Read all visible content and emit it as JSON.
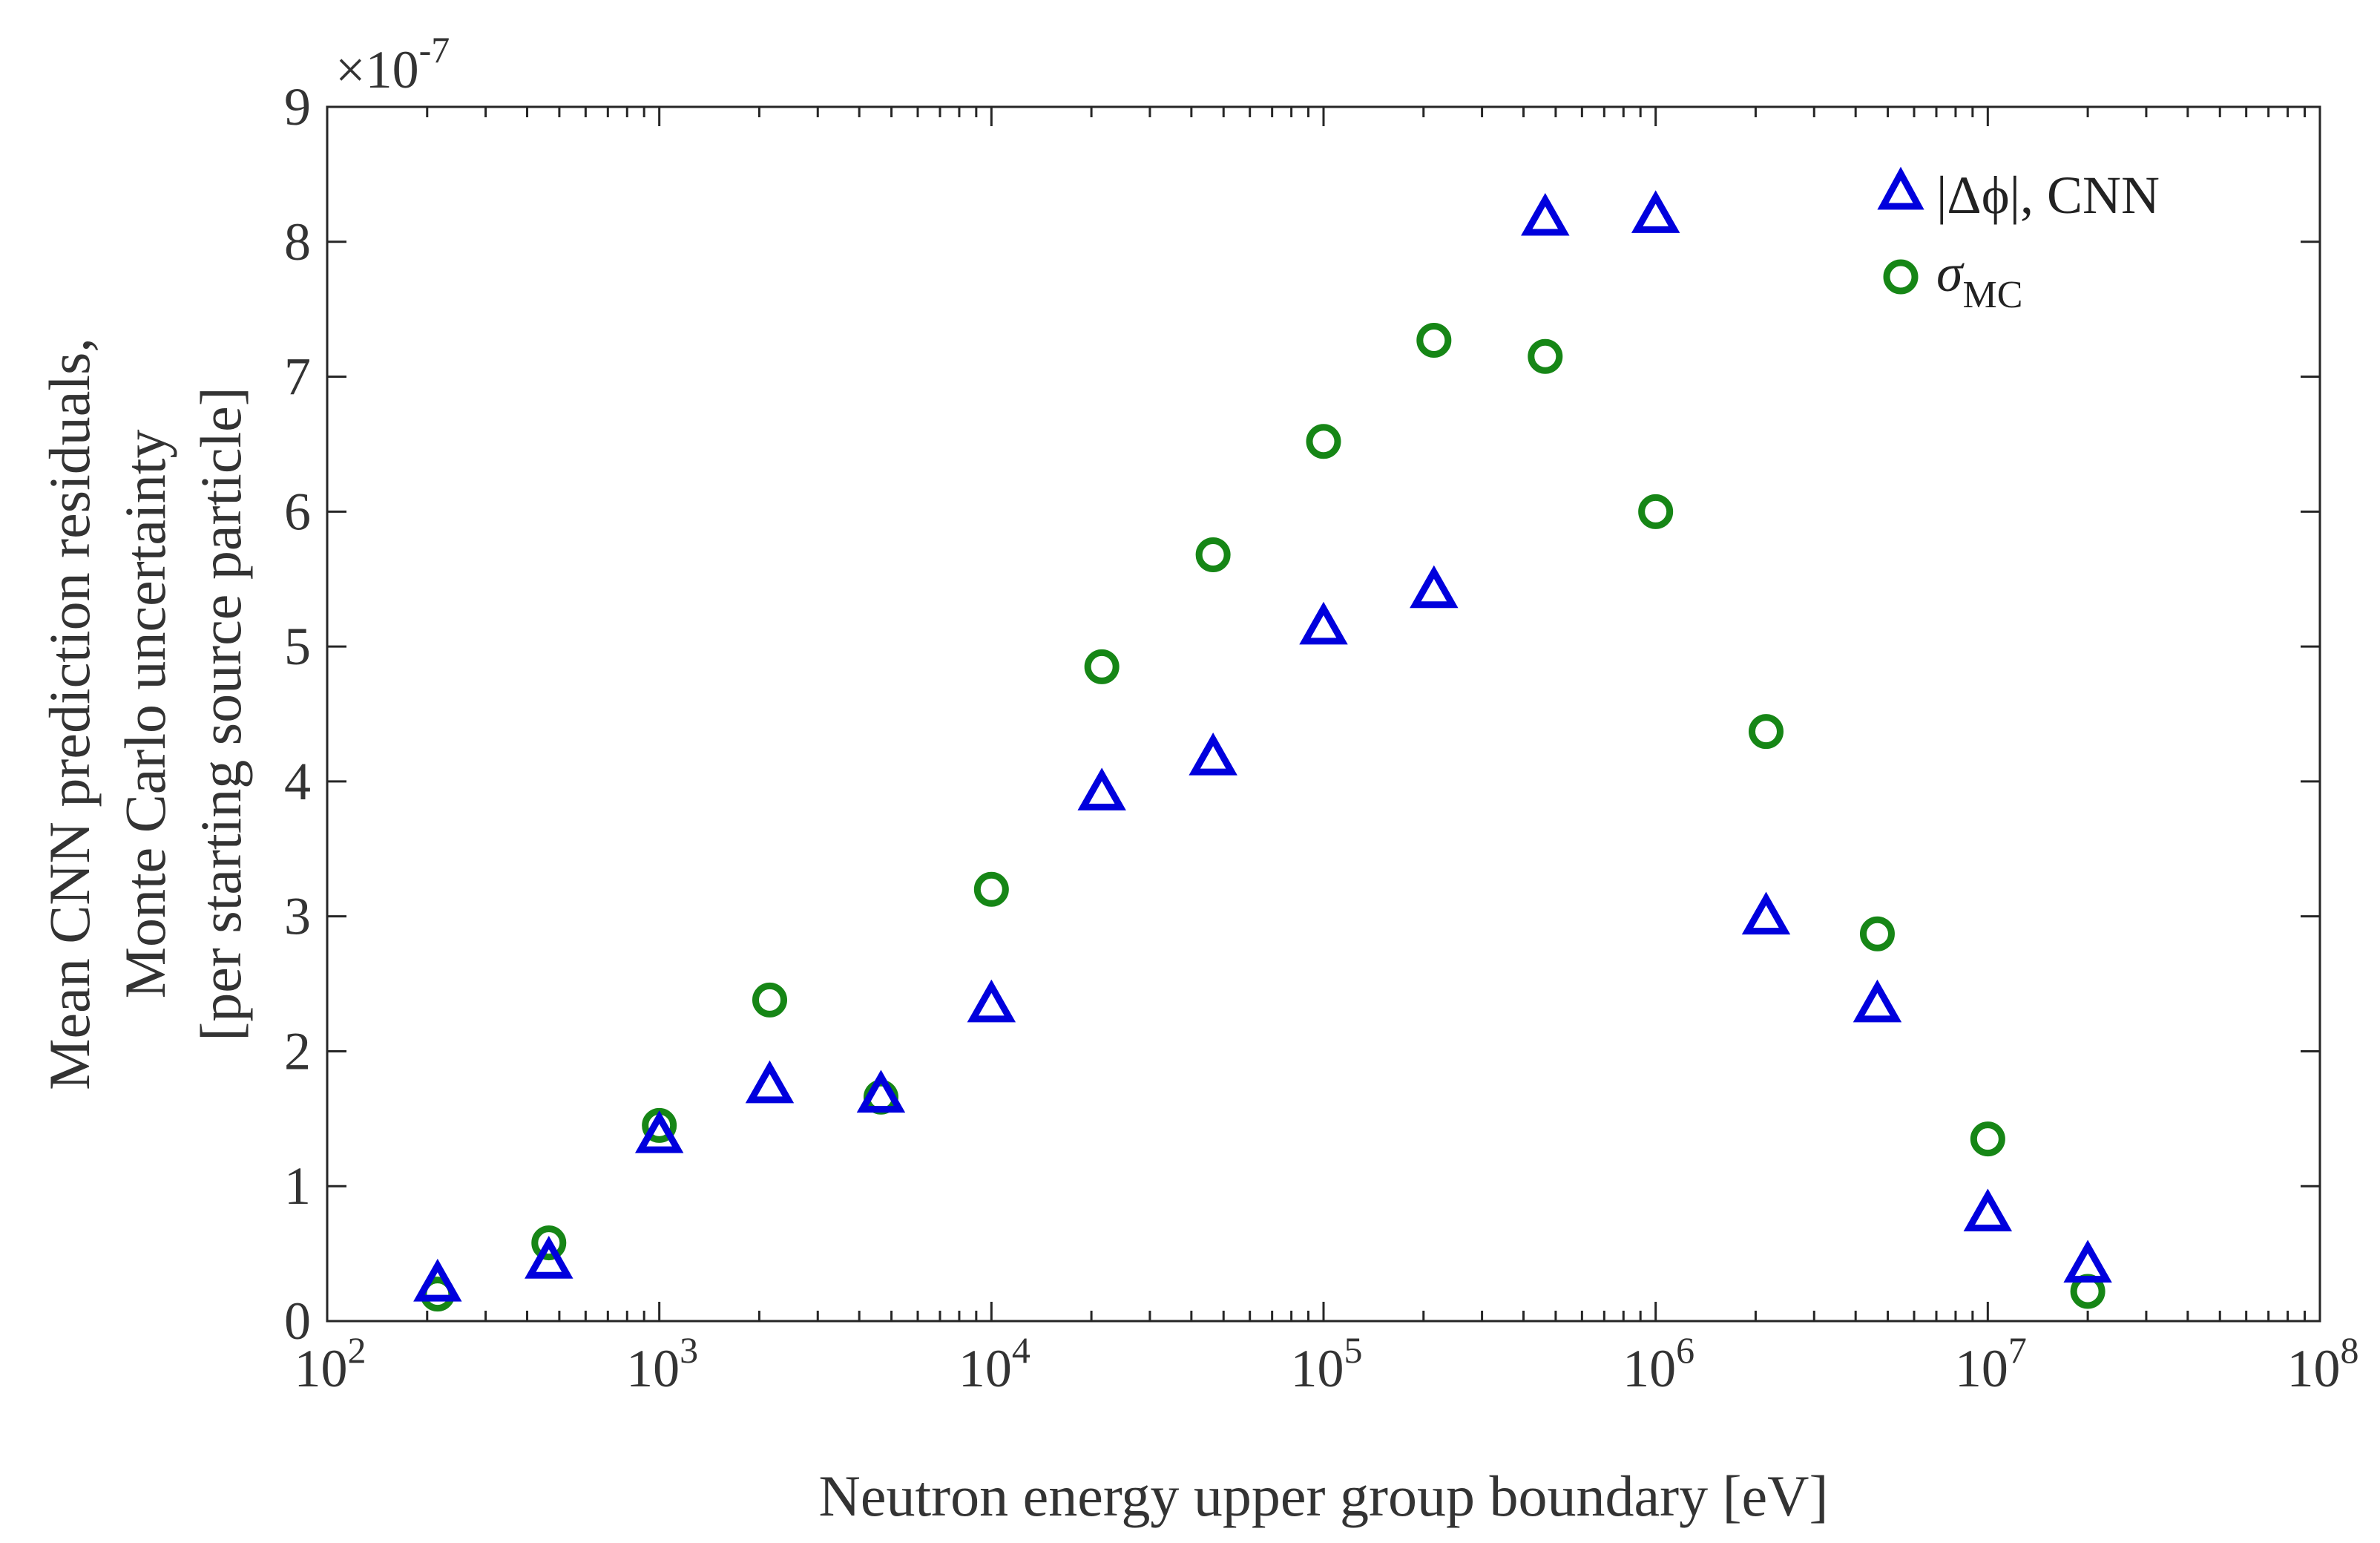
{
  "chart_data": {
    "type": "scatter",
    "title": "",
    "xlabel": "Neutron energy upper group boundary [eV]",
    "ylabel_lines": [
      "Mean CNN prediction  residuals,",
      "Monte Carlo uncertainty",
      "[per starting source particle]"
    ],
    "xscale": "log",
    "xlim": [
      100,
      100000000
    ],
    "ylim": [
      0,
      9
    ],
    "y_multiplier": "×10",
    "y_multiplier_exponent": "-7",
    "x_ticks": [
      {
        "base": "10",
        "exp": "2",
        "value": 100
      },
      {
        "base": "10",
        "exp": "3",
        "value": 1000
      },
      {
        "base": "10",
        "exp": "4",
        "value": 10000
      },
      {
        "base": "10",
        "exp": "5",
        "value": 100000
      },
      {
        "base": "10",
        "exp": "6",
        "value": 1000000
      },
      {
        "base": "10",
        "exp": "7",
        "value": 10000000
      },
      {
        "base": "10",
        "exp": "8",
        "value": 100000000
      }
    ],
    "y_ticks": [
      "0",
      "1",
      "2",
      "3",
      "4",
      "5",
      "6",
      "7",
      "8",
      "9"
    ],
    "legend_position": "top-right",
    "series": [
      {
        "name": "|Δϕ|, CNN",
        "legend_main": "|Δϕ|, CNN",
        "marker": "triangle",
        "color": "#0000dd",
        "x": [
          215,
          465,
          1000,
          2150,
          4650,
          10000,
          21500,
          46500,
          100000,
          215000,
          465000,
          1000000,
          2150000,
          4650000,
          10000000,
          20000000
        ],
        "y": [
          0.28,
          0.45,
          1.38,
          1.75,
          1.68,
          2.35,
          3.92,
          4.18,
          5.15,
          5.42,
          8.18,
          8.2,
          3.0,
          2.35,
          0.8,
          0.42
        ]
      },
      {
        "name": "σMC",
        "legend_main": "σ",
        "legend_sub": "MC",
        "marker": "circle",
        "color": "#168616",
        "x": [
          215,
          465,
          1000,
          2150,
          4650,
          10000,
          21500,
          46500,
          100000,
          215000,
          465000,
          1000000,
          2150000,
          4650000,
          10000000,
          20000000
        ],
        "y": [
          0.2,
          0.58,
          1.45,
          2.38,
          1.66,
          3.2,
          4.85,
          5.68,
          6.52,
          7.27,
          7.15,
          6.0,
          4.37,
          2.87,
          1.35,
          0.22
        ]
      }
    ]
  }
}
